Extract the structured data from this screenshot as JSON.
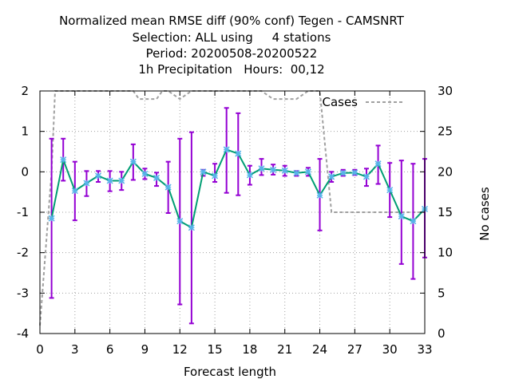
{
  "chart_data": {
    "type": "line",
    "title_lines": [
      "Normalized mean RMSE diff (90% conf) Tegen - CAMSNRT",
      "Selection: ALL using     4 stations",
      "Period: 20200508-20200522",
      "1h Precipitation   Hours:  00,12"
    ],
    "xlabel": "Forecast length",
    "ylabel": "",
    "y2label": "No cases",
    "xlim": [
      0,
      33
    ],
    "ylim": [
      -4,
      2
    ],
    "y2lim": [
      0,
      30
    ],
    "xticks": [
      0,
      3,
      6,
      9,
      12,
      15,
      18,
      21,
      24,
      27,
      30,
      33
    ],
    "yticks": [
      -4,
      -3,
      -2,
      -1,
      0,
      1,
      2
    ],
    "y2ticks": [
      0,
      5,
      10,
      15,
      20,
      25,
      30
    ],
    "grid": true,
    "legend_position": "top-right",
    "colors": {
      "line": "#009e73",
      "marker": "#56b4e9",
      "errorbar": "#9400d3",
      "cases": "#a0a0a0",
      "grid": "#a0a0a0"
    },
    "series": [
      {
        "x": [
          1,
          2,
          3,
          4,
          5,
          6,
          7,
          8,
          9,
          10,
          11,
          12,
          13,
          14,
          15,
          16,
          17,
          18,
          19,
          20,
          21,
          22,
          23,
          24,
          25,
          26,
          27,
          28,
          29,
          30,
          31,
          32,
          33
        ],
        "values": [
          -1.15,
          0.3,
          -0.47,
          -0.28,
          -0.1,
          -0.22,
          -0.22,
          0.25,
          -0.05,
          -0.15,
          -0.38,
          -1.22,
          -1.38,
          0.0,
          -0.1,
          0.55,
          0.45,
          -0.08,
          0.08,
          0.05,
          0.03,
          -0.03,
          0.0,
          -0.58,
          -0.12,
          -0.03,
          -0.02,
          -0.12,
          0.2,
          -0.45,
          -1.1,
          -1.22,
          -0.92
        ],
        "err_low": [
          -3.12,
          -0.22,
          -1.2,
          -0.6,
          -0.25,
          -0.48,
          -0.45,
          -0.2,
          -0.18,
          -0.35,
          -1.02,
          -3.28,
          -3.75,
          -0.1,
          -0.25,
          -0.52,
          -0.58,
          -0.32,
          -0.08,
          -0.07,
          -0.1,
          -0.1,
          -0.1,
          -1.45,
          -0.25,
          -0.1,
          -0.08,
          -0.35,
          -0.3,
          -1.12,
          -2.28,
          -2.65,
          -2.12
        ]
      },
      {
        "err_high": [
          0.82,
          0.82,
          0.25,
          0.02,
          0.02,
          0.02,
          0.0,
          0.68,
          0.08,
          -0.02,
          0.25,
          0.82,
          0.98,
          0.05,
          0.2,
          1.58,
          1.45,
          0.15,
          0.32,
          0.18,
          0.15,
          0.02,
          0.1,
          0.32,
          0.0,
          0.05,
          0.05,
          0.08,
          0.65,
          0.22,
          0.28,
          0.2,
          0.32
        ]
      }
    ],
    "cases": {
      "name": "Cases",
      "x": [
        0,
        1,
        1.3,
        8,
        8.5,
        10,
        10.5,
        11,
        12,
        13,
        19,
        20,
        22,
        23,
        24,
        25,
        33
      ],
      "values": [
        1,
        20,
        30,
        30,
        29,
        29,
        30,
        30,
        29,
        30,
        30,
        29,
        29,
        30,
        30,
        15,
        15
      ]
    }
  }
}
